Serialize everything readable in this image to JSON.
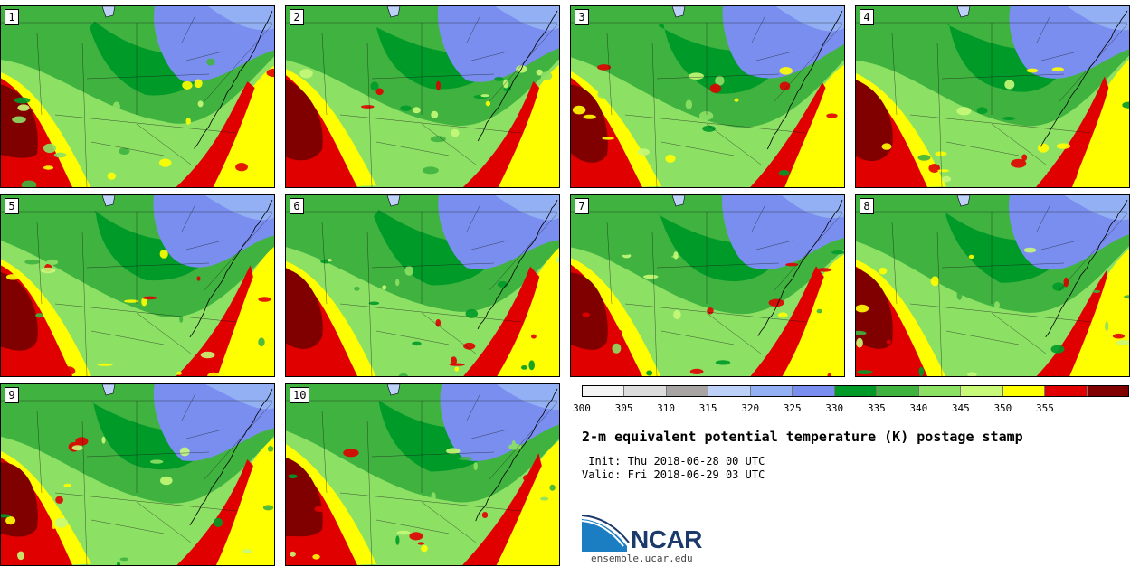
{
  "title": "2-m equivalent potential temperature (K) postage stamp",
  "init_label": " Init: Thu 2018-06-28 00 UTC",
  "valid_label": "Valid: Fri 2018-06-29 03 UTC",
  "colorbar": {
    "ticks": [
      "300",
      "305",
      "310",
      "315",
      "320",
      "325",
      "330",
      "335",
      "340",
      "345",
      "350",
      "355"
    ],
    "colors": [
      "#f4f4f4",
      "#dcdcdc",
      "#a8a4a4",
      "#bcd0f8",
      "#94b0f4",
      "#7a8ef0",
      "#009a28",
      "#3fb23f",
      "#8ce064",
      "#c8f878",
      "#ffff00",
      "#e00000",
      "#800000"
    ]
  },
  "members": [
    {
      "label": "1",
      "seed": 11
    },
    {
      "label": "2",
      "seed": 23
    },
    {
      "label": "3",
      "seed": 37
    },
    {
      "label": "4",
      "seed": 41
    },
    {
      "label": "5",
      "seed": 53
    },
    {
      "label": "6",
      "seed": 67
    },
    {
      "label": "7",
      "seed": 79
    },
    {
      "label": "8",
      "seed": 83
    },
    {
      "label": "9",
      "seed": 97
    },
    {
      "label": "10",
      "seed": 101
    }
  ],
  "logo": {
    "text": "NCAR",
    "url": "ensemble.ucar.edu",
    "colors": {
      "blue": "#1b7ec2",
      "navy": "#1b3a6b"
    }
  }
}
